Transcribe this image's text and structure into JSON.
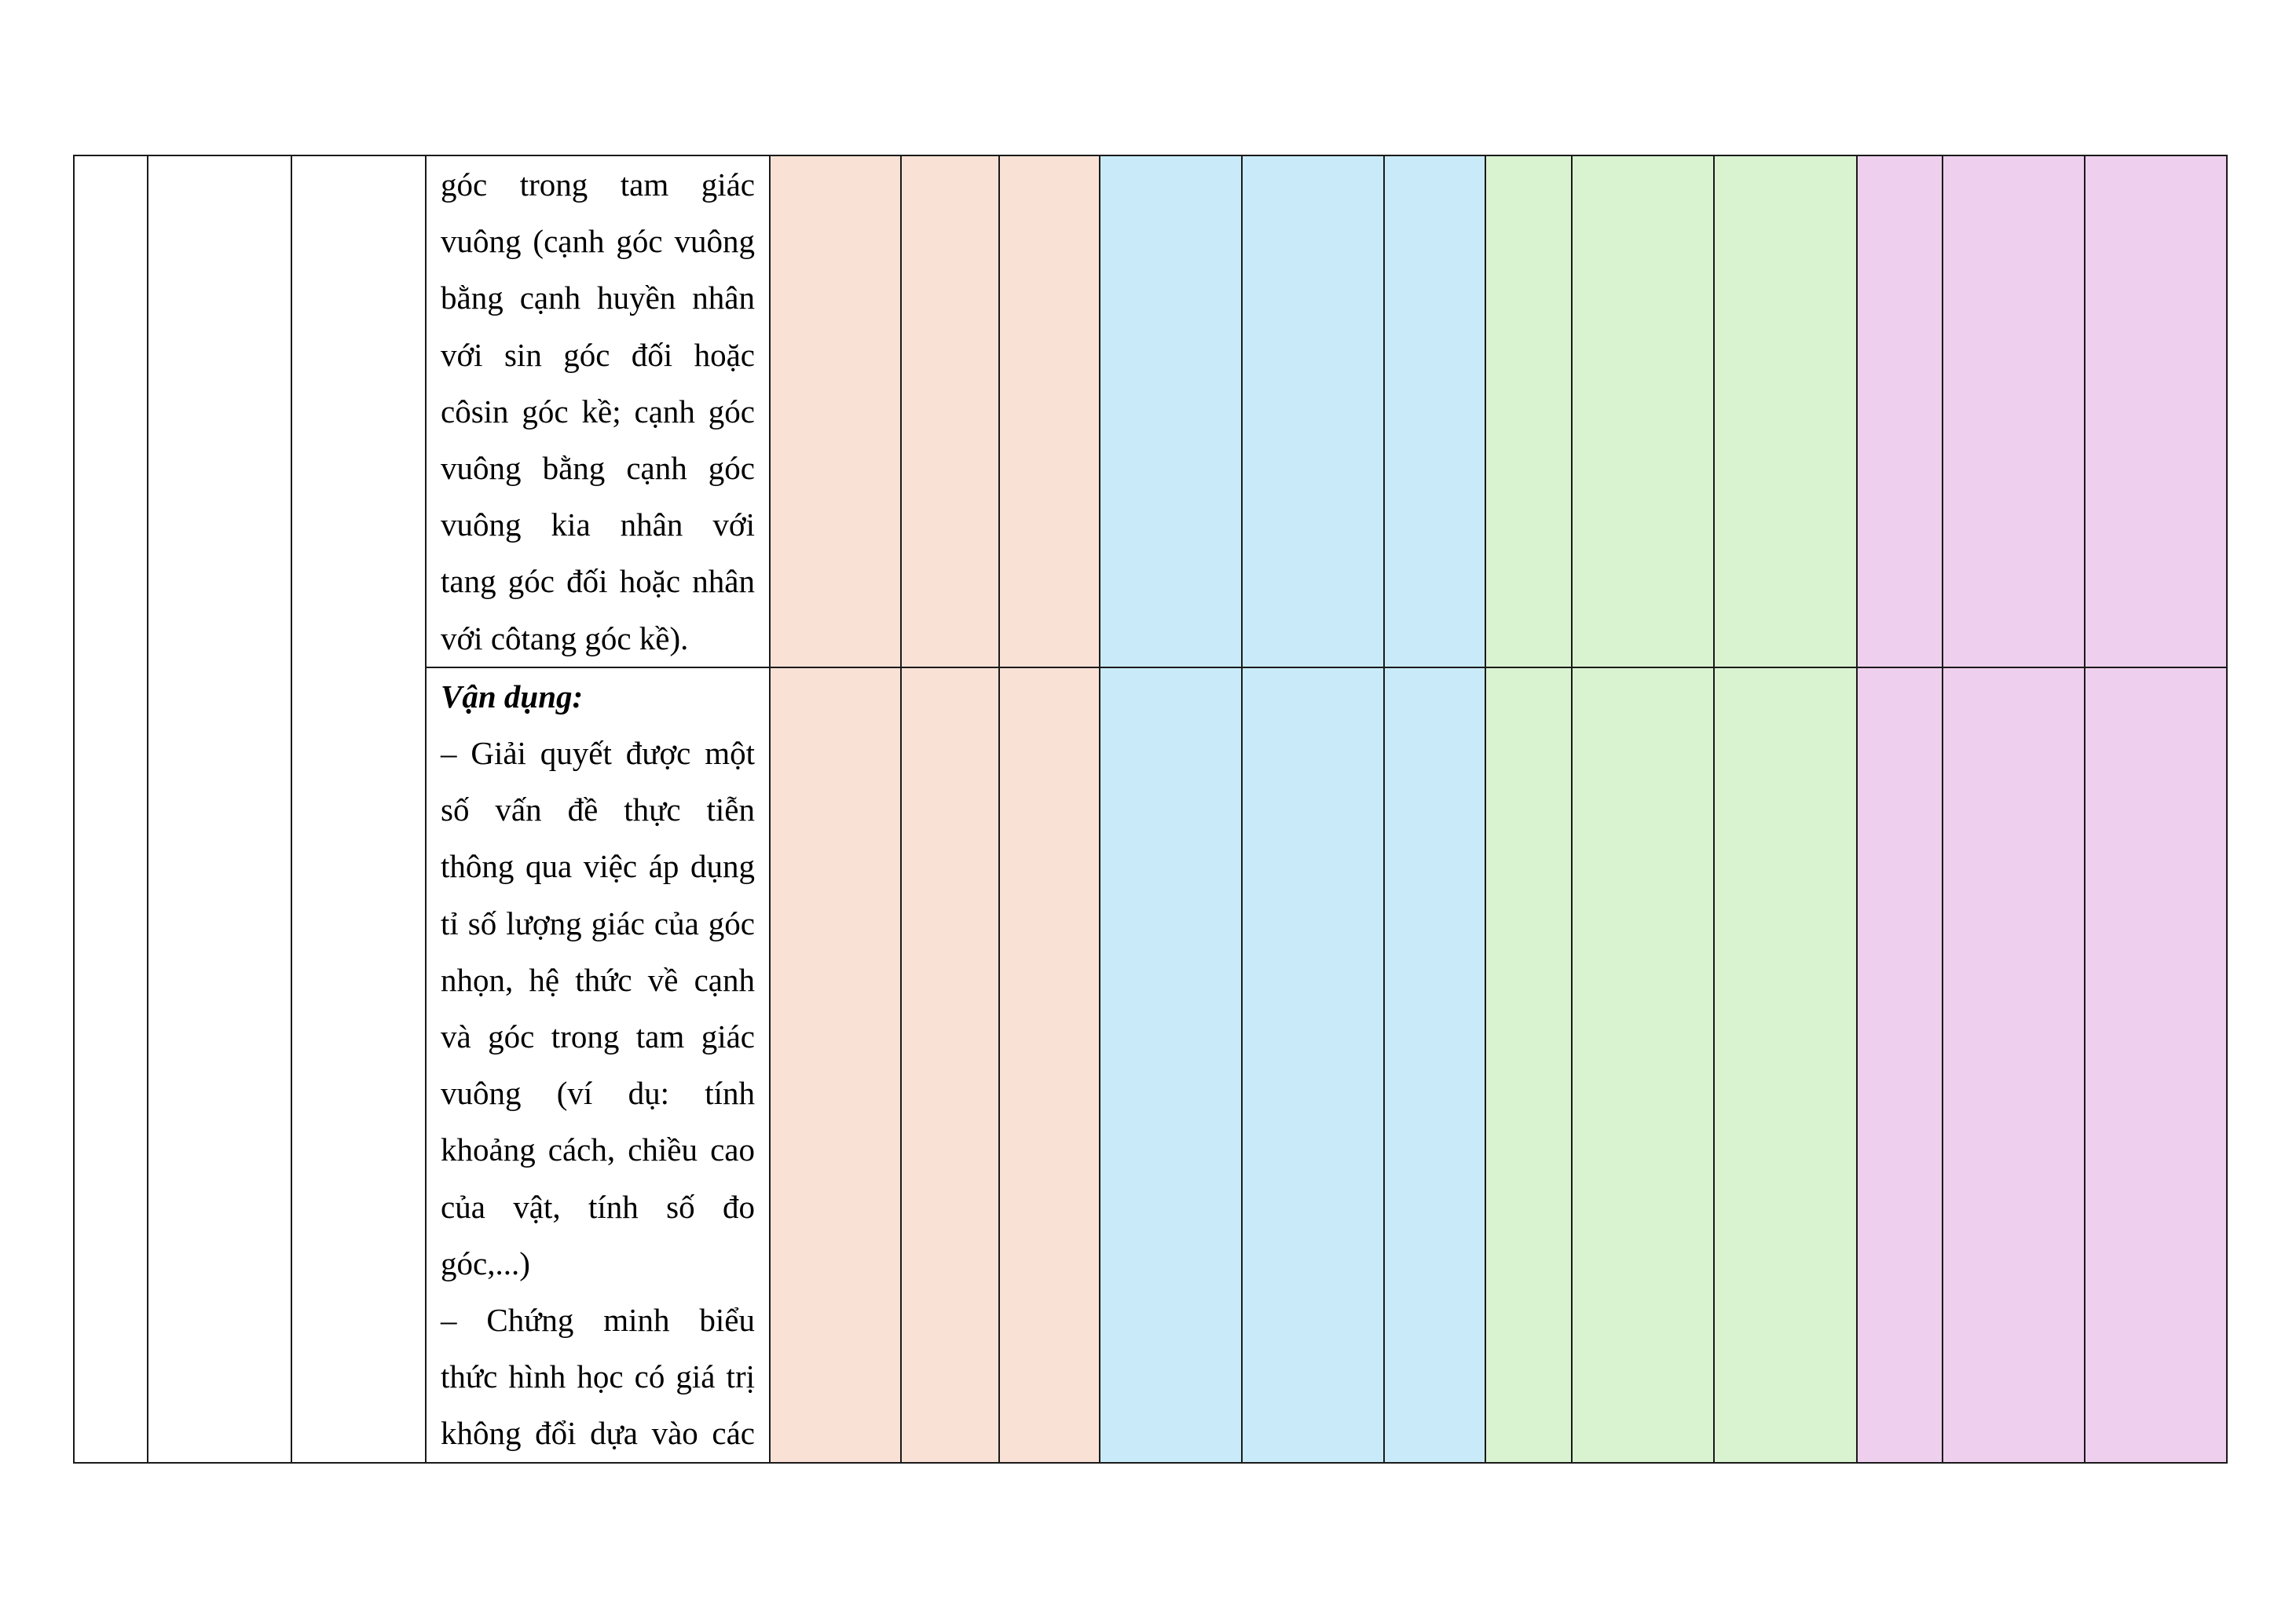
{
  "row1": {
    "lines": [
      "góc trong tam giác",
      "vuông (cạnh góc vuông",
      "bằng cạnh huyền nhân",
      "với sin góc đối hoặc",
      "côsin góc kề; cạnh góc",
      "vuông bằng cạnh góc",
      "vuông kia nhân với",
      "tang góc đối hoặc nhân",
      "với côtang góc kề)."
    ]
  },
  "row2": {
    "heading": "Vận dụng:",
    "lines": [
      "– Giải quyết được một",
      "số vấn đề thực tiễn",
      "thông qua việc áp dụng",
      "tỉ số lượng giác của góc",
      "nhọn, hệ thức về cạnh",
      "và góc trong tam giác",
      "vuông (ví dụ: tính",
      "khoảng cách, chiều cao",
      "của vật, tính số đo",
      "góc,...)",
      "– Chứng minh biểu",
      "thức hình học có giá trị",
      "không đổi dựa vào các"
    ]
  },
  "colors": {
    "peach": "#f9e1d6",
    "blue": "#c9ebf9",
    "green": "#d9f3d0",
    "pink": "#efcfee",
    "border": "#1a1a1a"
  }
}
